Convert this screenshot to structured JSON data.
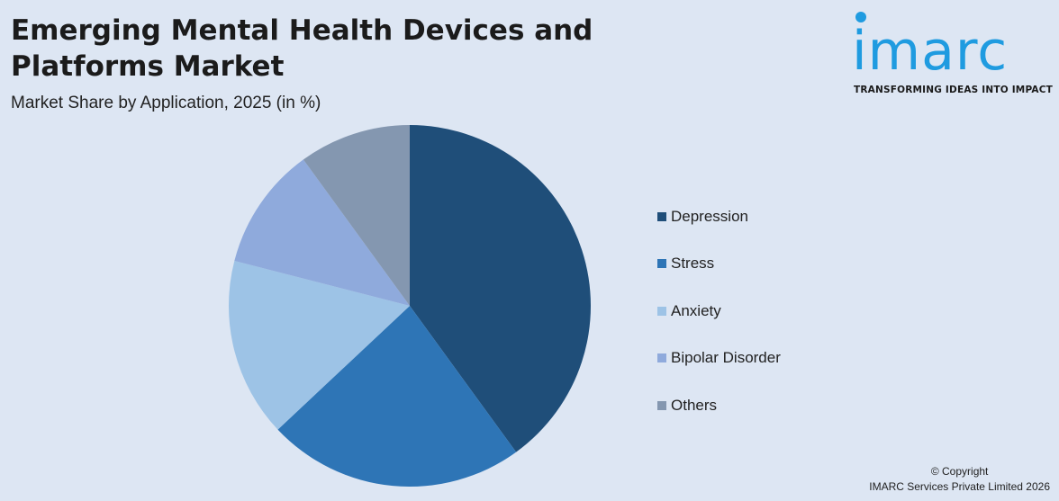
{
  "header": {
    "title": "Emerging Mental Health Devices and Platforms Market",
    "subtitle": "Market Share by Application, 2025 (in %)"
  },
  "logo": {
    "wordmark": "imarc",
    "tagline": "TRANSFORMING IDEAS INTO IMPACT"
  },
  "chart_data": {
    "type": "pie",
    "title": "Emerging Mental Health Devices and Platforms Market",
    "subtitle": "Market Share by Application, 2025 (in %)",
    "start_angle_deg": 0,
    "direction": "clockwise",
    "legend_position": "right",
    "slices": [
      {
        "label": "Depression",
        "value": 40,
        "color": "#1f4e79"
      },
      {
        "label": "Stress",
        "value": 23,
        "color": "#2e75b6"
      },
      {
        "label": "Anxiety",
        "value": 16,
        "color": "#9dc3e6"
      },
      {
        "label": "Bipolar Disorder",
        "value": 11,
        "color": "#8faadc"
      },
      {
        "label": "Others",
        "value": 10,
        "color": "#8497b0"
      }
    ]
  },
  "footer": {
    "copyright_line1": "© Copyright",
    "copyright_line2": "IMARC Services Private Limited 2026"
  }
}
